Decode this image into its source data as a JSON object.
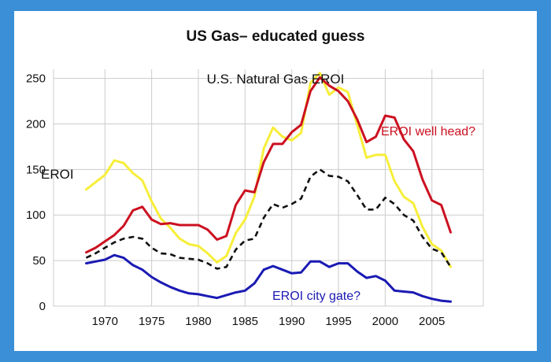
{
  "header": {
    "title": "US Gas– educated guess"
  },
  "chart_data": {
    "type": "line",
    "title": "U.S. Natural Gas EROI",
    "ylabel": "EROI",
    "xlabel": "",
    "xlim": [
      1964.5,
      2010.5
    ],
    "ylim": [
      0,
      260
    ],
    "xticks": [
      1970,
      1975,
      1980,
      1985,
      1990,
      1995,
      2000,
      2005
    ],
    "yticks": [
      0,
      50,
      100,
      150,
      200,
      250
    ],
    "grid": true,
    "x": [
      1968,
      1969,
      1970,
      1971,
      1972,
      1973,
      1974,
      1975,
      1976,
      1977,
      1978,
      1979,
      1980,
      1981,
      1982,
      1983,
      1984,
      1985,
      1986,
      1987,
      1988,
      1989,
      1990,
      1991,
      1992,
      1993,
      1994,
      1995,
      1996,
      1997,
      1998,
      1999,
      2000,
      2001,
      2002,
      2003,
      2004,
      2005,
      2006,
      2007
    ],
    "series": [
      {
        "name": "EROI well head?",
        "color": "#cc1020",
        "dash": false,
        "values": [
          59,
          64,
          71,
          78,
          88,
          105,
          109,
          95,
          90,
          91,
          89,
          89,
          89,
          84,
          73,
          77,
          111,
          127,
          125,
          158,
          178,
          178,
          191,
          199,
          236,
          251,
          242,
          236,
          225,
          205,
          180,
          186,
          209,
          207,
          183,
          170,
          139,
          116,
          111,
          81
        ]
      },
      {
        "name": "",
        "color": "#f7ee3a",
        "dash": false,
        "values": [
          128,
          136,
          144,
          160,
          157,
          146,
          138,
          115,
          96,
          86,
          74,
          68,
          66,
          58,
          48,
          55,
          80,
          95,
          120,
          173,
          196,
          186,
          182,
          190,
          245,
          256,
          232,
          240,
          235,
          199,
          163,
          166,
          166,
          137,
          120,
          113,
          87,
          68,
          61,
          43
        ]
      },
      {
        "name": "",
        "color": "#111111",
        "dash": true,
        "values": [
          53,
          58,
          64,
          70,
          74,
          76,
          74,
          64,
          58,
          57,
          53,
          52,
          51,
          47,
          41,
          43,
          62,
          72,
          74,
          97,
          112,
          108,
          112,
          118,
          142,
          150,
          143,
          142,
          137,
          122,
          106,
          106,
          119,
          112,
          100,
          94,
          76,
          63,
          59,
          43
        ]
      },
      {
        "name": "EROI city gate?",
        "color": "#1a1ab4",
        "dash": false,
        "values": [
          47,
          49,
          51,
          56,
          53,
          45,
          40,
          32,
          26,
          21,
          17,
          14,
          13,
          11,
          9,
          12,
          15,
          17,
          25,
          40,
          44,
          40,
          36,
          37,
          49,
          49,
          43,
          47,
          47,
          38,
          31,
          33,
          28,
          17,
          16,
          15,
          11,
          8,
          6,
          5
        ]
      }
    ]
  },
  "colors": {
    "background": "#3a8fd6",
    "panel": "#ffffff",
    "grid": "#cccccc"
  }
}
